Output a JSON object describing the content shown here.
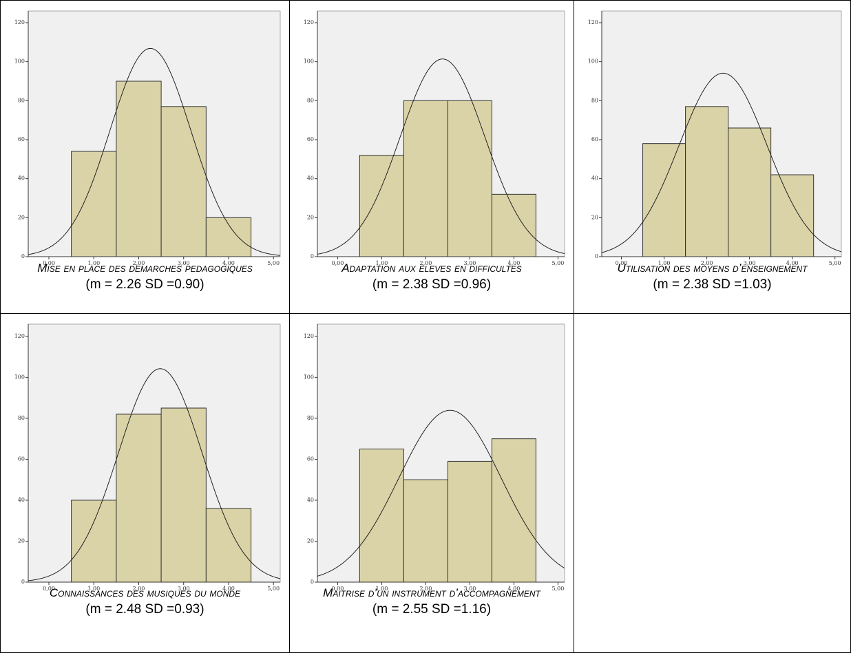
{
  "chart_data": [
    {
      "type": "histogram",
      "title": "Mise en place des demarches pedagogiques",
      "stats_label": "(m = 2.26 SD =0.90)",
      "mean": 2.26,
      "sd": 0.9,
      "bins": [
        0.5,
        1.5,
        2.5,
        3.5,
        4.5
      ],
      "values": [
        54,
        90,
        77,
        20
      ],
      "color": "#d9d3a7",
      "background": "#f0f0f0",
      "normal_curve": true,
      "xlim": [
        -0.46,
        5.15
      ],
      "ylim": [
        0,
        126
      ],
      "xticks": [
        {
          "value": 0,
          "label": "0,00"
        },
        {
          "value": 1,
          "label": "1,00"
        },
        {
          "value": 2,
          "label": "2,00"
        },
        {
          "value": 3,
          "label": "3,00"
        },
        {
          "value": 4,
          "label": "4,00"
        },
        {
          "value": 5,
          "label": "5,00"
        }
      ],
      "yticks": [
        0,
        20,
        40,
        60,
        80,
        100,
        120
      ]
    },
    {
      "type": "histogram",
      "title": "Adaptation aux eleves en difficultes",
      "stats_label": "(m = 2.38 SD =0.96)",
      "mean": 2.38,
      "sd": 0.96,
      "bins": [
        0.5,
        1.5,
        2.5,
        3.5,
        4.5
      ],
      "values": [
        52,
        80,
        80,
        32
      ],
      "color": "#d9d3a7",
      "background": "#f0f0f0",
      "normal_curve": true,
      "xlim": [
        -0.46,
        5.15
      ],
      "ylim": [
        0,
        126
      ],
      "xticks": [
        {
          "value": 0,
          "label": "0,00"
        },
        {
          "value": 1,
          "label": "1,00"
        },
        {
          "value": 2,
          "label": "2,00"
        },
        {
          "value": 3,
          "label": "3,00"
        },
        {
          "value": 4,
          "label": "4,00"
        },
        {
          "value": 5,
          "label": "5,00"
        }
      ],
      "yticks": [
        0,
        20,
        40,
        60,
        80,
        100,
        120
      ]
    },
    {
      "type": "histogram",
      "title": "Utilisation des moyens d’enseignement",
      "stats_label": "(m = 2.38 SD =1.03)",
      "mean": 2.38,
      "sd": 1.03,
      "bins": [
        0.5,
        1.5,
        2.5,
        3.5,
        4.5
      ],
      "values": [
        58,
        77,
        66,
        42
      ],
      "color": "#d9d3a7",
      "background": "#f0f0f0",
      "normal_curve": true,
      "xlim": [
        -0.46,
        5.15
      ],
      "ylim": [
        0,
        126
      ],
      "xticks": [
        {
          "value": 0,
          "label": "0,00"
        },
        {
          "value": 1,
          "label": "1,00"
        },
        {
          "value": 2,
          "label": "2,00"
        },
        {
          "value": 3,
          "label": "3,00"
        },
        {
          "value": 4,
          "label": "4,00"
        },
        {
          "value": 5,
          "label": "5,00"
        }
      ],
      "yticks": [
        0,
        20,
        40,
        60,
        80,
        100,
        120
      ]
    },
    {
      "type": "histogram",
      "title": "Connaissances des musiques du monde",
      "stats_label": "(m = 2.48 SD =0.93)",
      "mean": 2.48,
      "sd": 0.93,
      "bins": [
        0.5,
        1.5,
        2.5,
        3.5,
        4.5
      ],
      "values": [
        40,
        82,
        85,
        36
      ],
      "color": "#d9d3a7",
      "background": "#f0f0f0",
      "normal_curve": true,
      "xlim": [
        -0.46,
        5.15
      ],
      "ylim": [
        0,
        126
      ],
      "xticks": [
        {
          "value": 0,
          "label": "0,00"
        },
        {
          "value": 1,
          "label": "1,00"
        },
        {
          "value": 2,
          "label": "2,00"
        },
        {
          "value": 3,
          "label": "3,00"
        },
        {
          "value": 4,
          "label": "4,00"
        },
        {
          "value": 5,
          "label": "5,00"
        }
      ],
      "yticks": [
        0,
        20,
        40,
        60,
        80,
        100,
        120
      ]
    },
    {
      "type": "histogram",
      "title": "Maitrise d’un instrument d’accompagnement",
      "stats_label": "(m = 2.55 SD =1.16)",
      "mean": 2.55,
      "sd": 1.16,
      "bins": [
        0.5,
        1.5,
        2.5,
        3.5,
        4.5
      ],
      "values": [
        65,
        50,
        59,
        70
      ],
      "color": "#d9d3a7",
      "background": "#f0f0f0",
      "normal_curve": true,
      "xlim": [
        -0.46,
        5.15
      ],
      "ylim": [
        0,
        126
      ],
      "xticks": [
        {
          "value": 0,
          "label": "0,00"
        },
        {
          "value": 1,
          "label": "1,00"
        },
        {
          "value": 2,
          "label": "2,00"
        },
        {
          "value": 3,
          "label": "3,00"
        },
        {
          "value": 4,
          "label": "4,00"
        },
        {
          "value": 5,
          "label": "5,00"
        }
      ],
      "yticks": [
        0,
        20,
        40,
        60,
        80,
        100,
        120
      ]
    }
  ]
}
